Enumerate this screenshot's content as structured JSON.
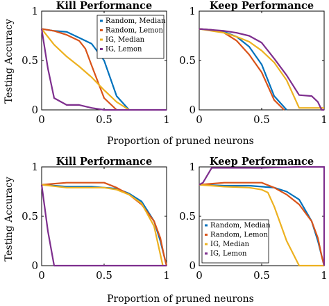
{
  "figure": {
    "ylabel": "Testing Accuracy",
    "xlabel": "Proportion of pruned neurons"
  },
  "colors": {
    "Random, Median": "#0072BD",
    "Random, Lemon": "#D95319",
    "IG, Median": "#EDB120",
    "IG, Lemon": "#7E2F8E"
  },
  "chart_data": [
    {
      "type": "line",
      "title": "Kill Performance",
      "xlim": [
        0,
        1
      ],
      "ylim": [
        0,
        1
      ],
      "xticks": [
        "0",
        "0.5",
        "1"
      ],
      "yticks": [
        "0",
        "0.5",
        "1"
      ],
      "legend": [
        "Random, Median",
        "Random, Lemon",
        "IG, Median",
        "IG, Lemon"
      ],
      "legend_position": "top-right",
      "series": [
        {
          "name": "Random, Median",
          "x": [
            0,
            0.1,
            0.2,
            0.3,
            0.4,
            0.5,
            0.6,
            0.7
          ],
          "y": [
            0.82,
            0.8,
            0.79,
            0.73,
            0.67,
            0.5,
            0.14,
            0.0
          ]
        },
        {
          "name": "Random, Lemon",
          "x": [
            0,
            0.1,
            0.2,
            0.3,
            0.35,
            0.4,
            0.5,
            0.6
          ],
          "y": [
            0.82,
            0.8,
            0.76,
            0.7,
            0.62,
            0.45,
            0.12,
            0.0
          ]
        },
        {
          "name": "IG, Median",
          "x": [
            0,
            0.1,
            0.2,
            0.3,
            0.4,
            0.5,
            0.6,
            0.7
          ],
          "y": [
            0.82,
            0.66,
            0.54,
            0.44,
            0.33,
            0.2,
            0.08,
            0.0
          ]
        },
        {
          "name": "IG, Lemon",
          "x": [
            0,
            0.05,
            0.1,
            0.2,
            0.3,
            0.4,
            0.5,
            1.0
          ],
          "y": [
            0.82,
            0.42,
            0.12,
            0.05,
            0.05,
            0.02,
            0.0,
            0.0
          ]
        }
      ]
    },
    {
      "type": "line",
      "title": "Keep Performance",
      "xlim": [
        0,
        1
      ],
      "ylim": [
        0,
        1
      ],
      "xticks": [
        "0",
        "0.5",
        "1"
      ],
      "yticks": [
        "0",
        "0.5",
        "1"
      ],
      "series": [
        {
          "name": "Random, Median",
          "x": [
            0,
            0.1,
            0.2,
            0.3,
            0.4,
            0.5,
            0.6,
            0.7
          ],
          "y": [
            0.82,
            0.81,
            0.79,
            0.74,
            0.64,
            0.46,
            0.14,
            0.0
          ]
        },
        {
          "name": "Random, Lemon",
          "x": [
            0,
            0.1,
            0.2,
            0.3,
            0.4,
            0.5,
            0.6,
            0.68
          ],
          "y": [
            0.82,
            0.81,
            0.78,
            0.7,
            0.56,
            0.38,
            0.1,
            0.0
          ]
        },
        {
          "name": "IG, Median",
          "x": [
            0,
            0.1,
            0.2,
            0.3,
            0.4,
            0.5,
            0.6,
            0.7,
            0.8,
            1.0
          ],
          "y": [
            0.82,
            0.8,
            0.78,
            0.74,
            0.69,
            0.6,
            0.48,
            0.3,
            0.02,
            0.02
          ]
        },
        {
          "name": "IG, Lemon",
          "x": [
            0,
            0.1,
            0.2,
            0.3,
            0.4,
            0.5,
            0.6,
            0.7,
            0.8,
            0.9,
            0.95,
            0.98,
            1.0
          ],
          "y": [
            0.82,
            0.81,
            0.8,
            0.78,
            0.75,
            0.68,
            0.52,
            0.35,
            0.15,
            0.14,
            0.08,
            0.0,
            0.0
          ]
        }
      ]
    },
    {
      "type": "line",
      "title": "Kill Performance",
      "xlim": [
        0,
        1
      ],
      "ylim": [
        0,
        1
      ],
      "xticks": [
        "0",
        "0.5",
        "1"
      ],
      "yticks": [
        "0",
        "0.5",
        "1"
      ],
      "series": [
        {
          "name": "Random, Median",
          "x": [
            0,
            0.2,
            0.4,
            0.6,
            0.7,
            0.8,
            0.9,
            0.95,
            0.98,
            1.0
          ],
          "y": [
            0.82,
            0.8,
            0.8,
            0.78,
            0.73,
            0.65,
            0.45,
            0.25,
            0.1,
            0.0
          ]
        },
        {
          "name": "Random, Lemon",
          "x": [
            0,
            0.2,
            0.5,
            0.6,
            0.7,
            0.8,
            0.9,
            0.95,
            0.98,
            1.0
          ],
          "y": [
            0.82,
            0.84,
            0.84,
            0.79,
            0.72,
            0.62,
            0.45,
            0.28,
            0.1,
            0.0
          ]
        },
        {
          "name": "IG, Median",
          "x": [
            0,
            0.2,
            0.5,
            0.6,
            0.7,
            0.8,
            0.9,
            0.97
          ],
          "y": [
            0.82,
            0.79,
            0.79,
            0.77,
            0.72,
            0.63,
            0.4,
            0.0
          ]
        },
        {
          "name": "IG, Lemon",
          "x": [
            0,
            0.05,
            0.1,
            1.0
          ],
          "y": [
            0.82,
            0.35,
            0.0,
            0.0
          ]
        }
      ]
    },
    {
      "type": "line",
      "title": "Keep Performance",
      "xlim": [
        0,
        1
      ],
      "ylim": [
        0,
        1
      ],
      "xticks": [
        "0",
        "0.5",
        "1"
      ],
      "yticks": [
        "0",
        "0.5",
        "1"
      ],
      "legend": [
        "Random, Median",
        "Random, Lemon",
        "IG, Median",
        "IG, Lemon"
      ],
      "legend_position": "bottom-left",
      "series": [
        {
          "name": "Random, Median",
          "x": [
            0,
            0.2,
            0.4,
            0.6,
            0.7,
            0.8,
            0.9,
            0.95,
            0.98,
            1.0
          ],
          "y": [
            0.82,
            0.81,
            0.81,
            0.79,
            0.75,
            0.67,
            0.45,
            0.25,
            0.1,
            0.0
          ]
        },
        {
          "name": "Random, Lemon",
          "x": [
            0,
            0.2,
            0.5,
            0.6,
            0.7,
            0.8,
            0.9,
            0.95,
            0.98,
            1.0
          ],
          "y": [
            0.82,
            0.84,
            0.84,
            0.79,
            0.72,
            0.62,
            0.45,
            0.28,
            0.1,
            0.0
          ]
        },
        {
          "name": "IG, Median",
          "x": [
            0,
            0.2,
            0.4,
            0.5,
            0.55,
            0.6,
            0.7,
            0.8,
            1.0
          ],
          "y": [
            0.82,
            0.8,
            0.79,
            0.77,
            0.74,
            0.6,
            0.25,
            0.0,
            0.0
          ]
        },
        {
          "name": "IG, Lemon",
          "x": [
            0,
            0.03,
            0.1,
            0.2,
            0.5,
            0.8,
            0.9,
            1.0,
            1.0
          ],
          "y": [
            0.82,
            0.84,
            0.99,
            0.99,
            0.99,
            1.0,
            1.0,
            1.0,
            0.0
          ]
        }
      ]
    }
  ]
}
